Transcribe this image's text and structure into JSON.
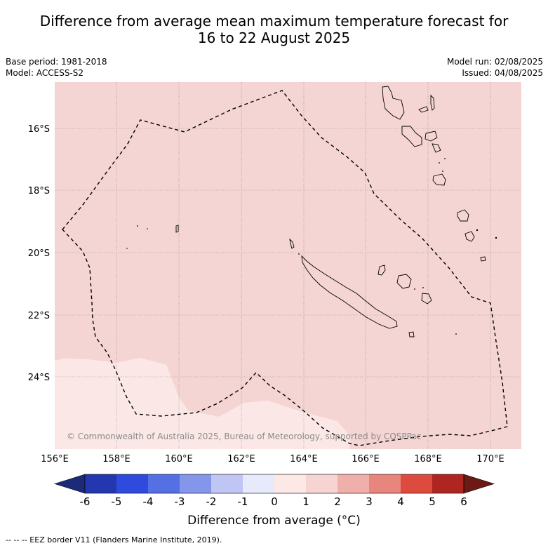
{
  "title_line1": "Difference from average mean maximum temperature forecast for",
  "title_line2": "16 to 22 August 2025",
  "meta": {
    "base_period": "Base period: 1981-2018",
    "model": "Model: ACCESS-S2",
    "model_run": "Model run: 02/08/2025",
    "issued": "Issued: 04/08/2025"
  },
  "copyright": "© Commonwealth of Australia 2025, Bureau of Meteorology, supported by COSPPac",
  "lat_labels": [
    "16°S",
    "18°S",
    "20°S",
    "22°S",
    "24°S"
  ],
  "lon_labels": [
    "156°E",
    "158°E",
    "160°E",
    "162°E",
    "164°E",
    "166°E",
    "168°E",
    "170°E"
  ],
  "colorbar": {
    "title": "Difference from average (°C)",
    "ticks": [
      "-6",
      "-5",
      "-4",
      "-3",
      "-2",
      "-1",
      "0",
      "1",
      "2",
      "3",
      "4",
      "5",
      "6"
    ],
    "colors": [
      "#1c2a7a",
      "#2338b0",
      "#2f4bde",
      "#5570e4",
      "#8496ea",
      "#c0c6f4",
      "#e6eafb",
      "#fce9e6",
      "#f5d4d1",
      "#efafaa",
      "#e8857d",
      "#dd4b3e",
      "#ad2620",
      "#6c1a14"
    ]
  },
  "footer": "--  --  -- EEZ border V11 (Flanders Marine Institute, 2019).",
  "map_colors": {
    "anomaly_0_1": "#fbe8e6",
    "anomaly_1_2": "#f5d5d3"
  }
}
